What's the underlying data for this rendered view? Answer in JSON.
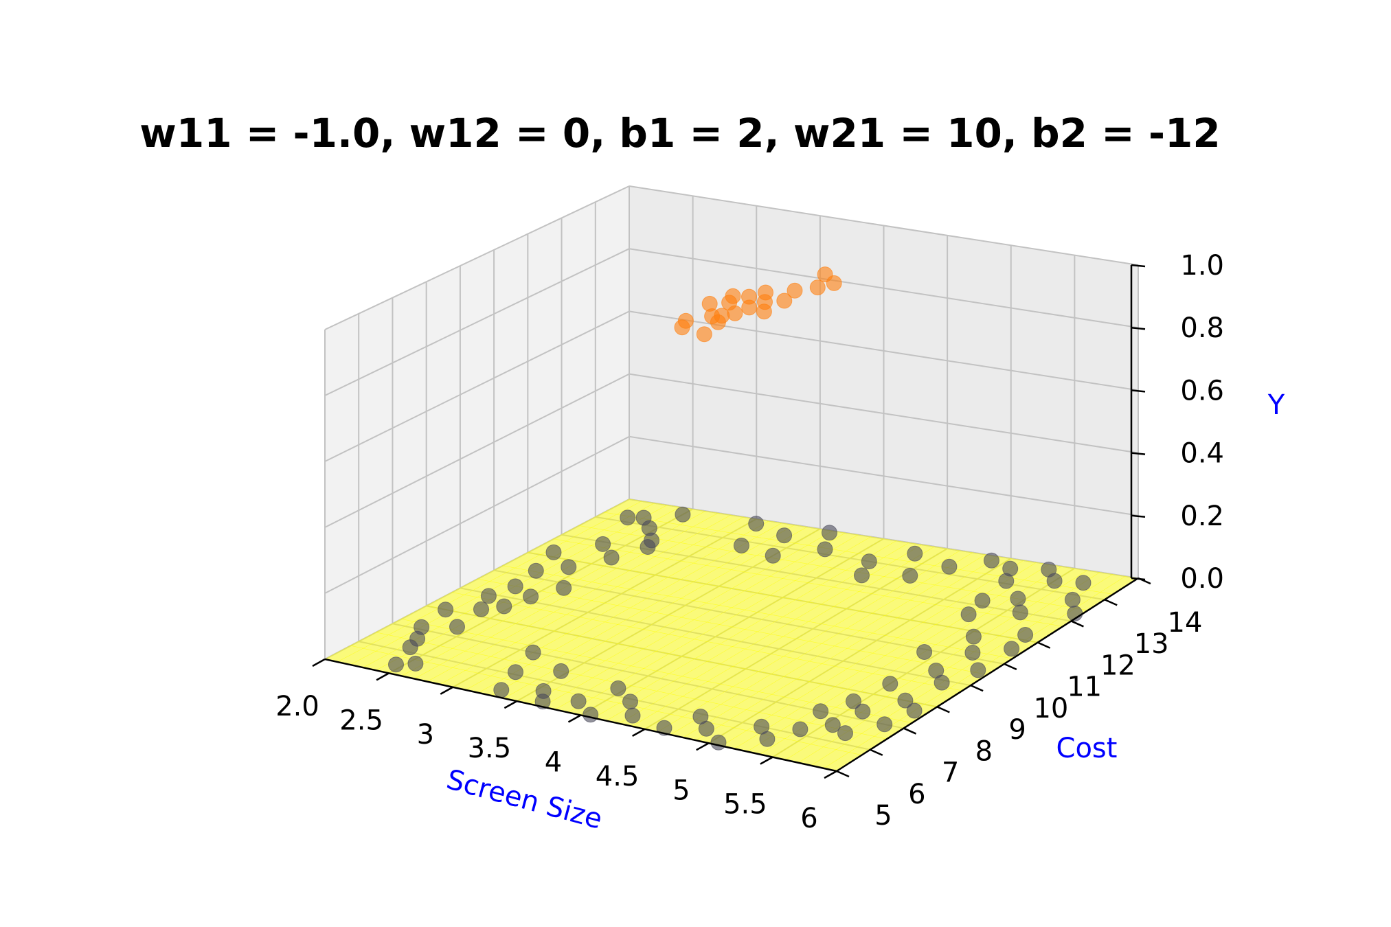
{
  "chart_data": {
    "type": "scatter",
    "projection": "3d",
    "title": "w11 = -1.0, w12 = 0, b1 = 2, w21 = 10, b2 = -12",
    "xlabel": "Screen Size",
    "ylabel": "Cost",
    "zlabel": "Y",
    "xlim": [
      2,
      6
    ],
    "ylim": [
      5,
      14
    ],
    "zlim": [
      0,
      1
    ],
    "x_ticks": [
      "2.0",
      "2.5",
      "3",
      "3.5",
      "4",
      "4.5",
      "5",
      "5.5",
      "6"
    ],
    "y_ticks": [
      "5",
      "6",
      "7",
      "8",
      "9",
      "10",
      "11",
      "12",
      "13",
      "14"
    ],
    "z_ticks": [
      "0.0",
      "0.2",
      "0.4",
      "0.6",
      "0.8",
      "1.0"
    ],
    "grid": true,
    "colors": {
      "surface": "#ffff00",
      "points_zero": "#4a4a5a",
      "points_one": "#ff7f0e",
      "axis_label": "#0000ff"
    },
    "surface": {
      "formula": "sigmoid(w21 * sigmoid(w11 * x + w12 * y + b1) + b2)",
      "w11": -1.0,
      "w12": 0,
      "b1": 2,
      "w21": 10,
      "b2": -12
    },
    "series": [
      {
        "label_value": 0,
        "points": [
          [
            2.45,
            5.4,
            0
          ],
          [
            2.55,
            5.6,
            0
          ],
          [
            2.35,
            6.2,
            0
          ],
          [
            2.3,
            6.6,
            0
          ],
          [
            2.2,
            7.1,
            0
          ],
          [
            2.4,
            7.4,
            0
          ],
          [
            2.15,
            8.0,
            0
          ],
          [
            2.35,
            8.3,
            0
          ],
          [
            2.45,
            8.6,
            0
          ],
          [
            2.5,
            9.2,
            0
          ],
          [
            2.3,
            9.5,
            0
          ],
          [
            2.6,
            9.8,
            0
          ],
          [
            2.25,
            10.3,
            0
          ],
          [
            2.4,
            10.7,
            0
          ],
          [
            2.15,
            11.2,
            0
          ],
          [
            2.55,
            11.4,
            0
          ],
          [
            2.35,
            11.9,
            0
          ],
          [
            2.6,
            12.4,
            0
          ],
          [
            2.45,
            12.9,
            0
          ],
          [
            2.3,
            13.3,
            0
          ],
          [
            2.5,
            13.7,
            0
          ],
          [
            2.2,
            13.2,
            0
          ],
          [
            2.65,
            12.1,
            0
          ],
          [
            2.25,
            8.9,
            0
          ],
          [
            3.3,
            5.3,
            0
          ],
          [
            3.55,
            5.6,
            0
          ],
          [
            3.2,
            6.1,
            0
          ],
          [
            3.45,
            6.5,
            0
          ],
          [
            3.65,
            5.2,
            0
          ],
          [
            3.1,
            7.0,
            0
          ],
          [
            3.35,
            13.5,
            0
          ],
          [
            3.6,
            13.9,
            0
          ],
          [
            3.2,
            12.8,
            0
          ],
          [
            3.5,
            12.6,
            0
          ],
          [
            3.75,
            13.2,
            0
          ],
          [
            3.05,
            13.8,
            0
          ],
          [
            3.85,
            5.5,
            0
          ],
          [
            4.05,
            5.1,
            0
          ],
          [
            4.15,
            5.9,
            0
          ],
          [
            3.95,
            6.3,
            0
          ],
          [
            4.3,
            5.4,
            0
          ],
          [
            4.15,
            13.0,
            0
          ],
          [
            4.35,
            13.6,
            0
          ],
          [
            4.55,
            12.7,
            0
          ],
          [
            4.7,
            13.3,
            0
          ],
          [
            4.9,
            13.8,
            0
          ],
          [
            4.25,
            12.4,
            0
          ],
          [
            4.6,
            5.2,
            0
          ],
          [
            4.85,
            5.5,
            0
          ],
          [
            5.05,
            5.1,
            0
          ],
          [
            4.7,
            5.9,
            0
          ],
          [
            5.15,
            6.0,
            0
          ],
          [
            5.3,
            5.6,
            0
          ],
          [
            5.4,
            6.2,
            0
          ],
          [
            5.55,
            6.6,
            0
          ],
          [
            5.35,
            7.0,
            0
          ],
          [
            5.7,
            6.4,
            0
          ],
          [
            5.6,
            7.3,
            0
          ],
          [
            5.85,
            7.0,
            0
          ],
          [
            5.45,
            7.6,
            0
          ],
          [
            5.75,
            8.0,
            0
          ],
          [
            5.9,
            7.7,
            0
          ],
          [
            5.5,
            8.5,
            0
          ],
          [
            5.8,
            8.9,
            0
          ],
          [
            5.65,
            9.3,
            0
          ],
          [
            5.9,
            9.6,
            0
          ],
          [
            5.4,
            9.9,
            0
          ],
          [
            5.7,
            10.2,
            0
          ],
          [
            5.55,
            10.8,
            0
          ],
          [
            5.85,
            11.2,
            0
          ],
          [
            5.3,
            11.6,
            0
          ],
          [
            5.6,
            12.0,
            0
          ],
          [
            5.45,
            12.5,
            0
          ],
          [
            5.8,
            12.8,
            0
          ],
          [
            5.2,
            13.1,
            0
          ],
          [
            5.5,
            13.4,
            0
          ],
          [
            5.35,
            13.8,
            0
          ],
          [
            5.7,
            13.5,
            0
          ],
          [
            5.95,
            12.3,
            0
          ],
          [
            5.9,
            10.6,
            0
          ],
          [
            5.25,
            12.2,
            0
          ],
          [
            5.1,
            13.6,
            0
          ]
        ]
      },
      {
        "label_value": 1,
        "points": [
          [
            3.9,
            8.5,
            1
          ],
          [
            4.0,
            8.9,
            1
          ],
          [
            4.1,
            9.2,
            1
          ],
          [
            3.95,
            9.6,
            1
          ],
          [
            4.15,
            9.9,
            1
          ],
          [
            4.05,
            10.3,
            1
          ],
          [
            4.2,
            10.6,
            1
          ],
          [
            4.0,
            10.0,
            1
          ],
          [
            4.1,
            8.7,
            1
          ],
          [
            3.85,
            9.4,
            1
          ],
          [
            4.25,
            9.5,
            1
          ],
          [
            4.3,
            10.9,
            1
          ],
          [
            4.35,
            11.2,
            1
          ],
          [
            4.2,
            11.5,
            1
          ],
          [
            3.95,
            8.2,
            1
          ],
          [
            4.15,
            8.1,
            1
          ],
          [
            4.05,
            9.0,
            1
          ],
          [
            4.25,
            10.1,
            1
          ],
          [
            3.9,
            9.9,
            1
          ],
          [
            4.12,
            9.55,
            1
          ]
        ]
      }
    ]
  }
}
